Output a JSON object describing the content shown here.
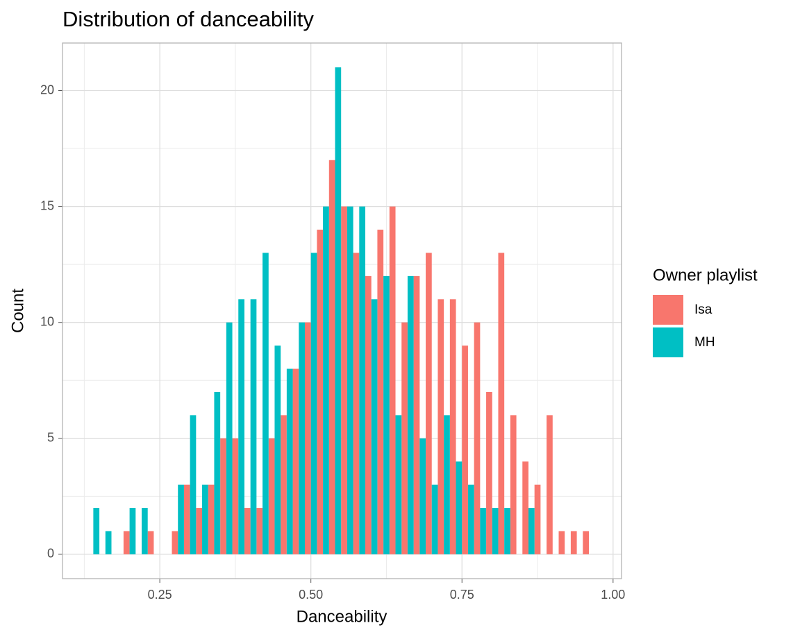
{
  "chart_data": {
    "type": "histogram",
    "title": "Distribution of danceability",
    "x_label": "Danceability",
    "y_label": "Count",
    "legend_title": "Owner playlist",
    "legend": "right",
    "grid": true,
    "bins": [
      0.13,
      0.15,
      0.17,
      0.19,
      0.21,
      0.23,
      0.25,
      0.27,
      0.29,
      0.31,
      0.33,
      0.35,
      0.37,
      0.39,
      0.41,
      0.43,
      0.45,
      0.47,
      0.49,
      0.51,
      0.53,
      0.55,
      0.57,
      0.59,
      0.61,
      0.63,
      0.65,
      0.67,
      0.69,
      0.71,
      0.73,
      0.75,
      0.77,
      0.79,
      0.81,
      0.83,
      0.85,
      0.87,
      0.89,
      0.91,
      0.93,
      0.95,
      0.97
    ],
    "series": [
      {
        "name": "Isa",
        "color": "#f8766d",
        "values": [
          0,
          0,
          0,
          1,
          0,
          1,
          0,
          1,
          3,
          2,
          3,
          5,
          5,
          2,
          2,
          5,
          6,
          8,
          10,
          14,
          17,
          15,
          13,
          12,
          14,
          15,
          10,
          12,
          13,
          11,
          11,
          9,
          10,
          7,
          13,
          6,
          4,
          3,
          6,
          1,
          1,
          1
        ]
      },
      {
        "name": "MH",
        "color": "#00bfc4",
        "values": [
          2,
          1,
          0,
          2,
          2,
          0,
          0,
          3,
          6,
          3,
          7,
          10,
          11,
          11,
          13,
          9,
          8,
          10,
          13,
          15,
          21,
          15,
          15,
          11,
          12,
          6,
          12,
          5,
          3,
          6,
          4,
          3,
          2,
          2,
          2,
          0,
          2,
          0,
          0,
          0,
          0,
          0
        ]
      }
    ],
    "xlim": [
      0.089,
      1.014
    ],
    "xticks": [
      {
        "value": 0.25,
        "label": "0.25"
      },
      {
        "value": 0.5,
        "label": "0.50"
      },
      {
        "value": 0.75,
        "label": "0.75"
      },
      {
        "value": 1,
        "label": "1.00"
      }
    ],
    "ylim": [
      -1.05,
      22.05
    ],
    "yticks": [
      0,
      5,
      10,
      15,
      20
    ]
  }
}
